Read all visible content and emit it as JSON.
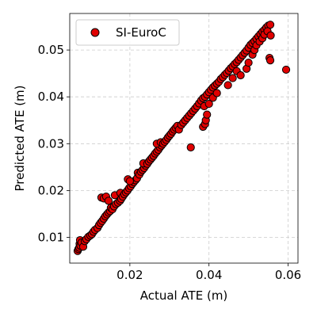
{
  "chart_data": {
    "type": "scatter",
    "title": "",
    "xlabel": "Actual ATE (m)",
    "ylabel": "Predicted ATE (m)",
    "xlim": [
      0.0048,
      0.0625
    ],
    "ylim": [
      0.0045,
      0.0578
    ],
    "x_ticks": [
      0.02,
      0.04,
      0.06
    ],
    "x_tick_labels": [
      "0.02",
      "0.04",
      "0.06"
    ],
    "y_ticks": [
      0.01,
      0.02,
      0.03,
      0.04,
      0.05
    ],
    "y_tick_labels": [
      "0.01",
      "0.02",
      "0.03",
      "0.04",
      "0.05"
    ],
    "grid": true,
    "legend_position": "top-left",
    "series": [
      {
        "name": "SI-EuroC",
        "color": "#e00000",
        "edge_color": "#000000",
        "points": [
          [
            0.0068,
            0.0071
          ],
          [
            0.007,
            0.0075
          ],
          [
            0.0072,
            0.0078
          ],
          [
            0.0073,
            0.0086
          ],
          [
            0.0074,
            0.0094
          ],
          [
            0.0075,
            0.0082
          ],
          [
            0.0078,
            0.0089
          ],
          [
            0.0082,
            0.008
          ],
          [
            0.0086,
            0.0092
          ],
          [
            0.009,
            0.0096
          ],
          [
            0.0095,
            0.0101
          ],
          [
            0.01,
            0.0104
          ],
          [
            0.0104,
            0.0107
          ],
          [
            0.0108,
            0.0112
          ],
          [
            0.0112,
            0.0116
          ],
          [
            0.0118,
            0.012
          ],
          [
            0.0122,
            0.0126
          ],
          [
            0.0126,
            0.0131
          ],
          [
            0.013,
            0.0135
          ],
          [
            0.0134,
            0.014
          ],
          [
            0.0138,
            0.0145
          ],
          [
            0.0142,
            0.0149
          ],
          [
            0.0146,
            0.0153
          ],
          [
            0.015,
            0.0156
          ],
          [
            0.0128,
            0.0185
          ],
          [
            0.0134,
            0.0183
          ],
          [
            0.014,
            0.0187
          ],
          [
            0.0146,
            0.0178
          ],
          [
            0.0152,
            0.0163
          ],
          [
            0.0156,
            0.016
          ],
          [
            0.016,
            0.0166
          ],
          [
            0.0165,
            0.0171
          ],
          [
            0.017,
            0.0174
          ],
          [
            0.0175,
            0.0178
          ],
          [
            0.0178,
            0.0182
          ],
          [
            0.0162,
            0.019
          ],
          [
            0.0176,
            0.0195
          ],
          [
            0.0182,
            0.0187
          ],
          [
            0.0186,
            0.0192
          ],
          [
            0.019,
            0.0196
          ],
          [
            0.0194,
            0.02
          ],
          [
            0.0198,
            0.0205
          ],
          [
            0.0202,
            0.0209
          ],
          [
            0.0206,
            0.0214
          ],
          [
            0.021,
            0.0218
          ],
          [
            0.0214,
            0.0222
          ],
          [
            0.0218,
            0.0226
          ],
          [
            0.0195,
            0.0224
          ],
          [
            0.02,
            0.022
          ],
          [
            0.022,
            0.0238
          ],
          [
            0.0224,
            0.0234
          ],
          [
            0.0228,
            0.024
          ],
          [
            0.0232,
            0.0244
          ],
          [
            0.0236,
            0.0248
          ],
          [
            0.024,
            0.0253
          ],
          [
            0.0234,
            0.0258
          ],
          [
            0.0244,
            0.0257
          ],
          [
            0.0248,
            0.0262
          ],
          [
            0.0252,
            0.0266
          ],
          [
            0.0256,
            0.027
          ],
          [
            0.026,
            0.0274
          ],
          [
            0.0264,
            0.0279
          ],
          [
            0.0268,
            0.0283
          ],
          [
            0.0272,
            0.0287
          ],
          [
            0.0276,
            0.0292
          ],
          [
            0.028,
            0.0296
          ],
          [
            0.0268,
            0.03
          ],
          [
            0.0278,
            0.0303
          ],
          [
            0.0284,
            0.03
          ],
          [
            0.0288,
            0.0304
          ],
          [
            0.0292,
            0.0308
          ],
          [
            0.0296,
            0.0313
          ],
          [
            0.03,
            0.0317
          ],
          [
            0.0304,
            0.0321
          ],
          [
            0.0308,
            0.0326
          ],
          [
            0.0312,
            0.033
          ],
          [
            0.0316,
            0.0334
          ],
          [
            0.032,
            0.0338
          ],
          [
            0.0324,
            0.033
          ],
          [
            0.033,
            0.034
          ],
          [
            0.0335,
            0.0345
          ],
          [
            0.034,
            0.035
          ],
          [
            0.0345,
            0.0355
          ],
          [
            0.035,
            0.036
          ],
          [
            0.0355,
            0.0365
          ],
          [
            0.036,
            0.037
          ],
          [
            0.0365,
            0.0375
          ],
          [
            0.037,
            0.038
          ],
          [
            0.0375,
            0.0386
          ],
          [
            0.038,
            0.0392
          ],
          [
            0.0385,
            0.0397
          ],
          [
            0.039,
            0.04
          ],
          [
            0.0395,
            0.0405
          ],
          [
            0.04,
            0.041
          ],
          [
            0.0405,
            0.0415
          ],
          [
            0.041,
            0.042
          ],
          [
            0.0415,
            0.0424
          ],
          [
            0.042,
            0.0428
          ],
          [
            0.0354,
            0.0292
          ],
          [
            0.0385,
            0.0336
          ],
          [
            0.039,
            0.0342
          ],
          [
            0.0392,
            0.035
          ],
          [
            0.0395,
            0.0362
          ],
          [
            0.0388,
            0.038
          ],
          [
            0.04,
            0.0385
          ],
          [
            0.041,
            0.0398
          ],
          [
            0.042,
            0.0408
          ],
          [
            0.0425,
            0.0432
          ],
          [
            0.043,
            0.0438
          ],
          [
            0.0435,
            0.0442
          ],
          [
            0.044,
            0.0447
          ],
          [
            0.0445,
            0.0451
          ],
          [
            0.045,
            0.0456
          ],
          [
            0.0455,
            0.0461
          ],
          [
            0.046,
            0.0465
          ],
          [
            0.0465,
            0.047
          ],
          [
            0.047,
            0.0474
          ],
          [
            0.0475,
            0.0479
          ],
          [
            0.048,
            0.0484
          ],
          [
            0.0485,
            0.0489
          ],
          [
            0.049,
            0.0494
          ],
          [
            0.0495,
            0.0499
          ],
          [
            0.05,
            0.0505
          ],
          [
            0.0505,
            0.0511
          ],
          [
            0.051,
            0.0515
          ],
          [
            0.0515,
            0.0519
          ],
          [
            0.052,
            0.0524
          ],
          [
            0.0525,
            0.0529
          ],
          [
            0.053,
            0.0534
          ],
          [
            0.0535,
            0.0539
          ],
          [
            0.054,
            0.0543
          ],
          [
            0.0545,
            0.0548
          ],
          [
            0.055,
            0.0552
          ],
          [
            0.0555,
            0.0554
          ],
          [
            0.0448,
            0.0425
          ],
          [
            0.046,
            0.044
          ],
          [
            0.047,
            0.0455
          ],
          [
            0.048,
            0.0446
          ],
          [
            0.0495,
            0.046
          ],
          [
            0.05,
            0.0473
          ],
          [
            0.051,
            0.049
          ],
          [
            0.0515,
            0.05
          ],
          [
            0.052,
            0.051
          ],
          [
            0.0528,
            0.0518
          ],
          [
            0.0535,
            0.0525
          ],
          [
            0.054,
            0.0533
          ],
          [
            0.0548,
            0.054
          ],
          [
            0.0553,
            0.0483
          ],
          [
            0.0555,
            0.0478
          ],
          [
            0.0556,
            0.0531
          ],
          [
            0.0595,
            0.0458
          ]
        ]
      }
    ]
  }
}
